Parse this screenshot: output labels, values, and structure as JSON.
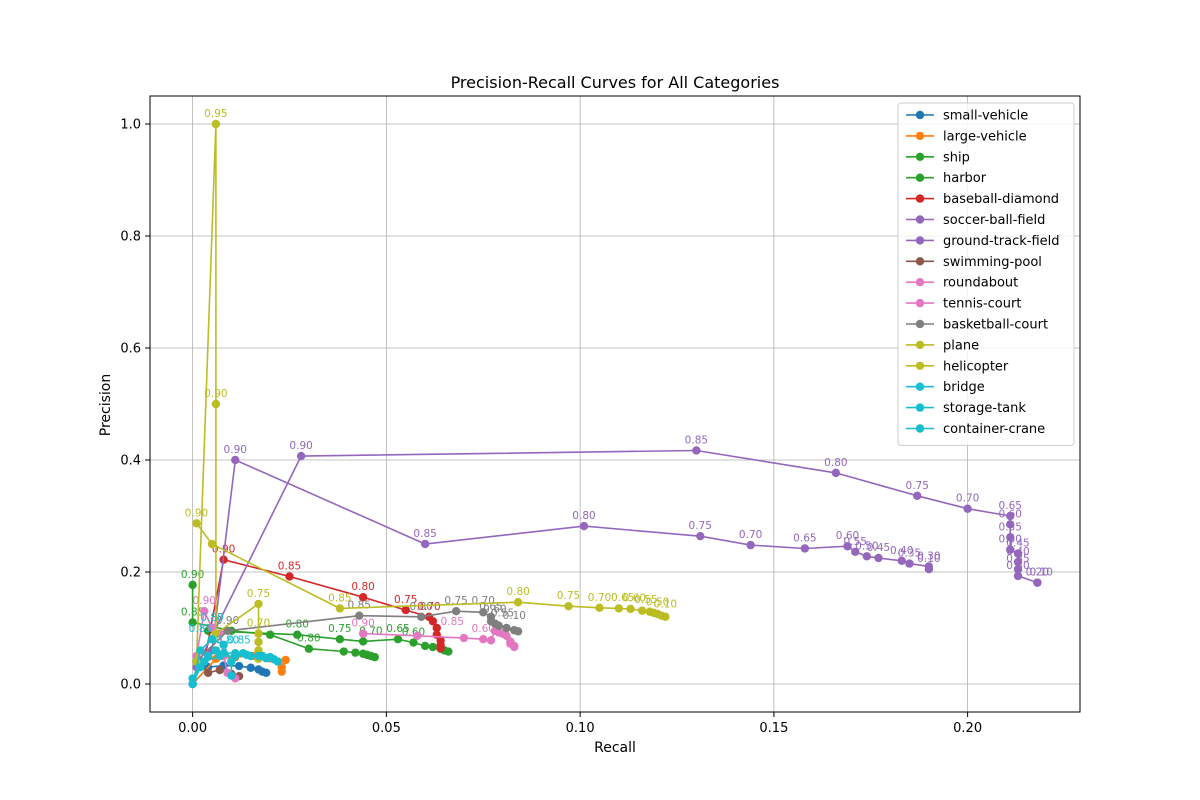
{
  "chart_data": {
    "type": "line",
    "title": "Precision-Recall Curves for All Categories",
    "xlabel": "Recall",
    "ylabel": "Precision",
    "xlim": [
      -0.011,
      0.229
    ],
    "ylim": [
      -0.05,
      1.05
    ],
    "xticks": [
      "0.00",
      "0.05",
      "0.10",
      "0.15",
      "0.20"
    ],
    "yticks": [
      "0.0",
      "0.2",
      "0.4",
      "0.6",
      "0.8",
      "1.0"
    ],
    "grid": true,
    "legend_position": "upper right",
    "series": [
      {
        "name": "small-vehicle",
        "color": "#1f77b4",
        "points": [
          [
            0,
            0
          ],
          [
            0.004,
            0.03
          ],
          [
            0.008,
            0.033
          ],
          [
            0.012,
            0.032
          ],
          [
            0.015,
            0.029
          ],
          [
            0.017,
            0.026
          ],
          [
            0.018,
            0.022
          ],
          [
            0.019,
            0.02
          ]
        ],
        "labels": []
      },
      {
        "name": "large-vehicle",
        "color": "#ff7f0e",
        "points": [
          [
            0,
            0
          ],
          [
            0.006,
            0.045
          ],
          [
            0.011,
            0.048
          ],
          [
            0.016,
            0.05
          ],
          [
            0.02,
            0.046
          ],
          [
            0.024,
            0.043
          ],
          [
            0.023,
            0.03
          ],
          [
            0.023,
            0.022
          ]
        ],
        "labels": []
      },
      {
        "name": "ship",
        "color": "#2ca02c",
        "points": [
          [
            0,
            0.177
          ],
          [
            0,
            0.11
          ],
          [
            0.01,
            0.095
          ],
          [
            0.02,
            0.088
          ],
          [
            0.03,
            0.063
          ],
          [
            0.039,
            0.058
          ],
          [
            0.042,
            0.056
          ],
          [
            0.044,
            0.054
          ],
          [
            0.045,
            0.052
          ],
          [
            0.046,
            0.05
          ],
          [
            0.047,
            0.048
          ]
        ],
        "labels": [
          [
            0,
            0.177,
            "0.90"
          ],
          [
            0,
            0.11,
            "0.85"
          ],
          [
            0.03,
            0.063,
            "0.80"
          ]
        ]
      },
      {
        "name": "harbor",
        "color": "#2ca02c",
        "points": [
          [
            0.004,
            0.095
          ],
          [
            0.027,
            0.088
          ],
          [
            0.038,
            0.08
          ],
          [
            0.044,
            0.076
          ],
          [
            0.053,
            0.08
          ],
          [
            0.057,
            0.074
          ],
          [
            0.06,
            0.068
          ],
          [
            0.062,
            0.066
          ],
          [
            0.064,
            0.063
          ],
          [
            0.065,
            0.06
          ],
          [
            0.066,
            0.058
          ]
        ],
        "labels": [
          [
            0.027,
            0.088,
            "0.80"
          ],
          [
            0.038,
            0.08,
            "0.75"
          ],
          [
            0.046,
            0.076,
            "0.70"
          ],
          [
            0.053,
            0.08,
            "0.65"
          ],
          [
            0.057,
            0.074,
            "0.60"
          ]
        ]
      },
      {
        "name": "baseball-diamond",
        "color": "#d62728",
        "points": [
          [
            0.003,
            0.04
          ],
          [
            0.008,
            0.222
          ],
          [
            0.025,
            0.192
          ],
          [
            0.044,
            0.155
          ],
          [
            0.055,
            0.132
          ],
          [
            0.061,
            0.12
          ],
          [
            0.062,
            0.112
          ],
          [
            0.063,
            0.1
          ],
          [
            0.063,
            0.088
          ],
          [
            0.064,
            0.078
          ],
          [
            0.064,
            0.07
          ],
          [
            0.064,
            0.064
          ]
        ],
        "labels": [
          [
            0.008,
            0.222,
            "0.90"
          ],
          [
            0.025,
            0.192,
            "0.85"
          ],
          [
            0.044,
            0.155,
            "0.80"
          ],
          [
            0.055,
            0.132,
            "0.75"
          ],
          [
            0.061,
            0.12,
            "0.70"
          ]
        ]
      },
      {
        "name": "soccer-ball-field",
        "color": "#9467bd",
        "points": [
          [
            0.005,
            0.06
          ],
          [
            0.011,
            0.4
          ],
          [
            0.06,
            0.25
          ],
          [
            0.101,
            0.282
          ],
          [
            0.131,
            0.264
          ],
          [
            0.144,
            0.248
          ],
          [
            0.158,
            0.242
          ],
          [
            0.169,
            0.246
          ],
          [
            0.171,
            0.236
          ],
          [
            0.174,
            0.228
          ],
          [
            0.177,
            0.225
          ],
          [
            0.183,
            0.22
          ],
          [
            0.185,
            0.215
          ],
          [
            0.19,
            0.21
          ],
          [
            0.19,
            0.205
          ]
        ],
        "labels": [
          [
            0.011,
            0.4,
            "0.90"
          ],
          [
            0.06,
            0.25,
            "0.85"
          ],
          [
            0.101,
            0.282,
            "0.80"
          ],
          [
            0.131,
            0.264,
            "0.75"
          ],
          [
            0.144,
            0.248,
            "0.70"
          ],
          [
            0.158,
            0.242,
            "0.65"
          ],
          [
            0.169,
            0.246,
            "0.60"
          ],
          [
            0.171,
            0.236,
            "0.55"
          ],
          [
            0.174,
            0.228,
            "0.50"
          ],
          [
            0.177,
            0.225,
            "0.45"
          ],
          [
            0.183,
            0.22,
            "0.40"
          ],
          [
            0.185,
            0.215,
            "0.35"
          ],
          [
            0.19,
            0.21,
            "0.30"
          ],
          [
            0.19,
            0.205,
            "0.10"
          ]
        ]
      },
      {
        "name": "ground-track-field",
        "color": "#9467bd",
        "points": [
          [
            0.001,
            0.03
          ],
          [
            0.028,
            0.407
          ],
          [
            0.13,
            0.417
          ],
          [
            0.166,
            0.377
          ],
          [
            0.187,
            0.336
          ],
          [
            0.2,
            0.313
          ],
          [
            0.211,
            0.3
          ],
          [
            0.211,
            0.285
          ],
          [
            0.211,
            0.262
          ],
          [
            0.211,
            0.24
          ],
          [
            0.213,
            0.233
          ],
          [
            0.213,
            0.218
          ],
          [
            0.213,
            0.205
          ],
          [
            0.213,
            0.193
          ],
          [
            0.218,
            0.181
          ],
          [
            0.218,
            0.181
          ]
        ],
        "labels": [
          [
            0.028,
            0.407,
            "0.90"
          ],
          [
            0.13,
            0.417,
            "0.85"
          ],
          [
            0.166,
            0.377,
            "0.80"
          ],
          [
            0.187,
            0.336,
            "0.75"
          ],
          [
            0.2,
            0.313,
            "0.70"
          ],
          [
            0.211,
            0.3,
            "0.65"
          ],
          [
            0.211,
            0.285,
            "0.60"
          ],
          [
            0.211,
            0.262,
            "0.55"
          ],
          [
            0.211,
            0.24,
            "0.50"
          ],
          [
            0.213,
            0.233,
            "0.45"
          ],
          [
            0.213,
            0.218,
            "0.40"
          ],
          [
            0.213,
            0.205,
            "0.35"
          ],
          [
            0.213,
            0.193,
            "0.30"
          ],
          [
            0.218,
            0.181,
            "0.20"
          ],
          [
            0.219,
            0.181,
            "0.10"
          ]
        ]
      },
      {
        "name": "swimming-pool",
        "color": "#8c564b",
        "points": [
          [
            0.001,
            0.04
          ],
          [
            0.004,
            0.02
          ],
          [
            0.007,
            0.025
          ],
          [
            0.01,
            0.018
          ],
          [
            0.012,
            0.014
          ]
        ],
        "labels": []
      },
      {
        "name": "roundabout",
        "color": "#e377c2",
        "points": [
          [
            0.001,
            0.05
          ],
          [
            0.003,
            0.13
          ],
          [
            0.005,
            0.1
          ],
          [
            0.007,
            0.09
          ],
          [
            0.008,
            0.05
          ],
          [
            0.009,
            0.02
          ],
          [
            0.011,
            0.01
          ]
        ],
        "labels": [
          [
            0.003,
            0.13,
            "0.90"
          ],
          [
            0.005,
            0.1,
            "0.85"
          ]
        ]
      },
      {
        "name": "tennis-court",
        "color": "#e377c2",
        "points": [
          [
            0.044,
            0.09
          ],
          [
            0.058,
            0.086
          ],
          [
            0.07,
            0.082
          ],
          [
            0.075,
            0.08
          ],
          [
            0.077,
            0.078
          ],
          [
            0.078,
            0.095
          ],
          [
            0.079,
            0.092
          ],
          [
            0.08,
            0.09
          ],
          [
            0.081,
            0.086
          ],
          [
            0.082,
            0.076
          ],
          [
            0.082,
            0.072
          ],
          [
            0.083,
            0.068
          ],
          [
            0.083,
            0.066
          ]
        ],
        "labels": [
          [
            0.044,
            0.09,
            "0.90"
          ],
          [
            0.067,
            0.093,
            "0.85"
          ],
          [
            0.075,
            0.08,
            "0.60"
          ]
        ]
      },
      {
        "name": "basketball-court",
        "color": "#7f7f7f",
        "points": [
          [
            0.001,
            0.04
          ],
          [
            0.009,
            0.095
          ],
          [
            0.043,
            0.122
          ],
          [
            0.059,
            0.12
          ],
          [
            0.068,
            0.13
          ],
          [
            0.075,
            0.128
          ],
          [
            0.077,
            0.12
          ],
          [
            0.077,
            0.112
          ],
          [
            0.078,
            0.108
          ],
          [
            0.079,
            0.104
          ],
          [
            0.081,
            0.1
          ],
          [
            0.083,
            0.096
          ],
          [
            0.084,
            0.094
          ]
        ],
        "labels": [
          [
            0.009,
            0.095,
            "0.90"
          ],
          [
            0.043,
            0.122,
            "0.85"
          ],
          [
            0.059,
            0.12,
            "0.80"
          ],
          [
            0.068,
            0.13,
            "0.75"
          ],
          [
            0.075,
            0.13,
            "0.70"
          ],
          [
            0.077,
            0.12,
            "0.65"
          ],
          [
            0.078,
            0.115,
            "0.60"
          ],
          [
            0.08,
            0.108,
            "0.55"
          ],
          [
            0.083,
            0.104,
            "0.10"
          ]
        ]
      },
      {
        "name": "plane",
        "color": "#bcbd22",
        "points": [
          [
            0.001,
            0.287
          ],
          [
            0.005,
            0.25
          ],
          [
            0.038,
            0.135
          ],
          [
            0.084,
            0.146
          ],
          [
            0.097,
            0.139
          ],
          [
            0.105,
            0.136
          ],
          [
            0.11,
            0.135
          ],
          [
            0.113,
            0.134
          ],
          [
            0.116,
            0.131
          ],
          [
            0.118,
            0.129
          ],
          [
            0.119,
            0.127
          ],
          [
            0.12,
            0.125
          ],
          [
            0.121,
            0.122
          ],
          [
            0.122,
            0.12
          ]
        ],
        "labels": [
          [
            0.001,
            0.287,
            "0.90"
          ],
          [
            0.038,
            0.135,
            "0.85"
          ],
          [
            0.084,
            0.146,
            "0.80"
          ],
          [
            0.097,
            0.139,
            "0.75"
          ],
          [
            0.105,
            0.136,
            "0.70"
          ],
          [
            0.111,
            0.136,
            "0.65"
          ],
          [
            0.114,
            0.135,
            "0.60"
          ],
          [
            0.117,
            0.132,
            "0.55"
          ],
          [
            0.12,
            0.128,
            "0.50"
          ],
          [
            0.122,
            0.124,
            "0.10"
          ]
        ]
      },
      {
        "name": "helicopter",
        "color": "#bcbd22",
        "points": [
          [
            0.001,
            0.04
          ],
          [
            0.006,
            1.0
          ],
          [
            0.006,
            0.5
          ],
          [
            0.006,
            0.09
          ],
          [
            0.017,
            0.143
          ],
          [
            0.017,
            0.09
          ],
          [
            0.017,
            0.075
          ],
          [
            0.017,
            0.06
          ],
          [
            0.017,
            0.045
          ]
        ],
        "labels": [
          [
            0.006,
            1.0,
            "0.95"
          ],
          [
            0.006,
            0.5,
            "0.90"
          ],
          [
            0.017,
            0.143,
            "0.75"
          ],
          [
            0.017,
            0.09,
            "0.70"
          ]
        ]
      },
      {
        "name": "bridge",
        "color": "#17becf",
        "points": [
          [
            0,
            0
          ],
          [
            0.002,
            0.06
          ],
          [
            0.005,
            0.08
          ],
          [
            0.008,
            0.07
          ],
          [
            0.01,
            0.04
          ],
          [
            0.01,
            0.015
          ]
        ],
        "labels": [
          [
            0.002,
            0.08,
            "0.85"
          ],
          [
            0.005,
            0.1,
            "0.80"
          ]
        ]
      },
      {
        "name": "storage-tank",
        "color": "#17becf",
        "points": [
          [
            0,
            0.01
          ],
          [
            0.003,
            0.04
          ],
          [
            0.007,
            0.05
          ],
          [
            0.011,
            0.05
          ],
          [
            0.014,
            0.052
          ],
          [
            0.017,
            0.05
          ],
          [
            0.019,
            0.046
          ],
          [
            0.021,
            0.044
          ],
          [
            0.022,
            0.04
          ]
        ],
        "labels": []
      },
      {
        "name": "container-crane",
        "color": "#17becf",
        "points": [
          [
            0,
            0
          ],
          [
            0.002,
            0.03
          ],
          [
            0.004,
            0.05
          ],
          [
            0.006,
            0.06
          ],
          [
            0.008,
            0.055
          ],
          [
            0.011,
            0.055
          ],
          [
            0.013,
            0.055
          ],
          [
            0.015,
            0.05
          ],
          [
            0.018,
            0.05
          ],
          [
            0.02,
            0.048
          ]
        ],
        "labels": [
          [
            0.009,
            0.06,
            "0.80"
          ],
          [
            0.012,
            0.06,
            "0.85"
          ]
        ]
      }
    ]
  }
}
